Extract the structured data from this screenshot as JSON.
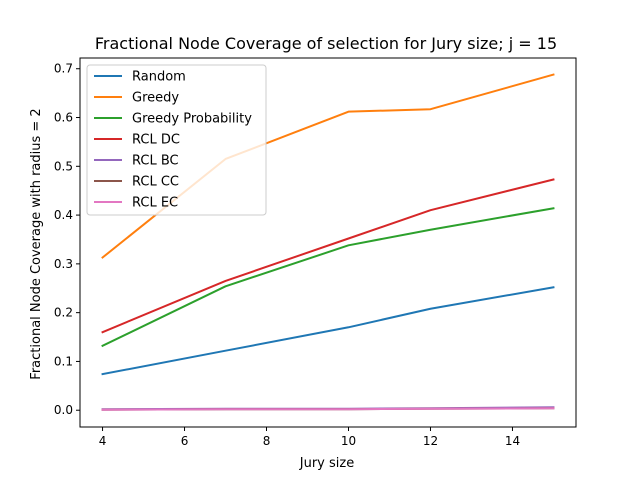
{
  "chart_data": {
    "type": "line",
    "title": "Fractional Node Coverage of selection for Jury size; j = 15",
    "xlabel": "Jury size",
    "ylabel": "Fractional Node Coverage with radius = 2",
    "xlim": [
      3.45,
      15.55
    ],
    "ylim": [
      -0.0344,
      0.722
    ],
    "xticks": [
      4,
      6,
      8,
      10,
      12,
      14
    ],
    "yticks": [
      0.0,
      0.1,
      0.2,
      0.3,
      0.4,
      0.5,
      0.6,
      0.7
    ],
    "x": [
      4,
      7,
      10,
      12,
      15
    ],
    "legend_position": "upper-left",
    "series": [
      {
        "name": "Random",
        "color": "#1f77b4",
        "values": [
          0.074,
          0.122,
          0.17,
          0.208,
          0.252
        ]
      },
      {
        "name": "Greedy",
        "color": "#ff7f0e",
        "values": [
          0.313,
          0.515,
          0.612,
          0.617,
          0.688
        ]
      },
      {
        "name": "Greedy Probability",
        "color": "#2ca02c",
        "values": [
          0.132,
          0.254,
          0.338,
          0.37,
          0.414
        ]
      },
      {
        "name": "RCL DC",
        "color": "#d62728",
        "values": [
          0.16,
          0.265,
          0.352,
          0.41,
          0.473
        ]
      },
      {
        "name": "RCL BC",
        "color": "#9467bd",
        "values": [
          0.002,
          0.003,
          0.003,
          0.004,
          0.006
        ]
      },
      {
        "name": "RCL CC",
        "color": "#8c564b",
        "values": [
          0.001,
          0.002,
          0.002,
          0.003,
          0.004
        ]
      },
      {
        "name": "RCL EC",
        "color": "#e377c2",
        "values": [
          0.001,
          0.002,
          0.002,
          0.003,
          0.004
        ]
      }
    ]
  }
}
